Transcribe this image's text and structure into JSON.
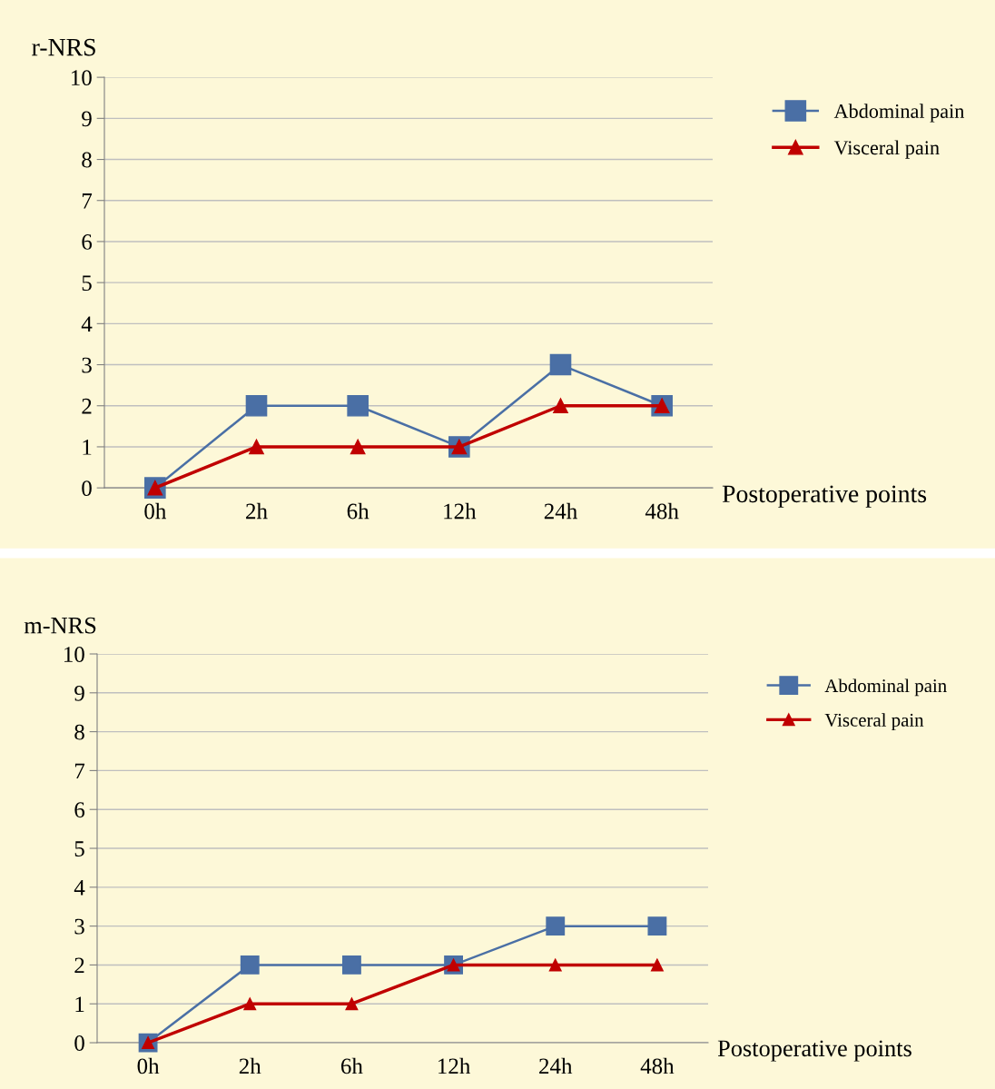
{
  "chart_data": [
    {
      "type": "line",
      "ylabel": "r-NRS",
      "xlabel": "Postoperative points",
      "categories": [
        "0h",
        "2h",
        "6h",
        "12h",
        "24h",
        "48h"
      ],
      "ylim": [
        0,
        10
      ],
      "yticks": [
        0,
        1,
        2,
        3,
        4,
        5,
        6,
        7,
        8,
        9,
        10
      ],
      "grid": "y",
      "legend": "right",
      "line_style": "solid",
      "series": [
        {
          "name": "Abdominal pain",
          "color": "#4a6fa5",
          "marker": "square",
          "values": [
            0,
            2,
            2,
            1,
            3,
            2
          ]
        },
        {
          "name": "Visceral pain",
          "color": "#c00000",
          "marker": "triangle",
          "values": [
            0,
            1,
            1,
            1,
            2,
            2
          ]
        }
      ]
    },
    {
      "type": "line",
      "ylabel": "m-NRS",
      "xlabel": "Postoperative points",
      "categories": [
        "0h",
        "2h",
        "6h",
        "12h",
        "24h",
        "48h"
      ],
      "ylim": [
        0,
        10
      ],
      "yticks": [
        0,
        1,
        2,
        3,
        4,
        5,
        6,
        7,
        8,
        9,
        10
      ],
      "grid": "y",
      "legend": "right",
      "line_style": "solid",
      "series": [
        {
          "name": "Abdominal pain",
          "color": "#4a6fa5",
          "marker": "square",
          "values": [
            0,
            2,
            2,
            2,
            3,
            3
          ]
        },
        {
          "name": "Visceral pain",
          "color": "#c00000",
          "marker": "triangle",
          "values": [
            0,
            1,
            1,
            2,
            2,
            2
          ]
        }
      ]
    }
  ]
}
